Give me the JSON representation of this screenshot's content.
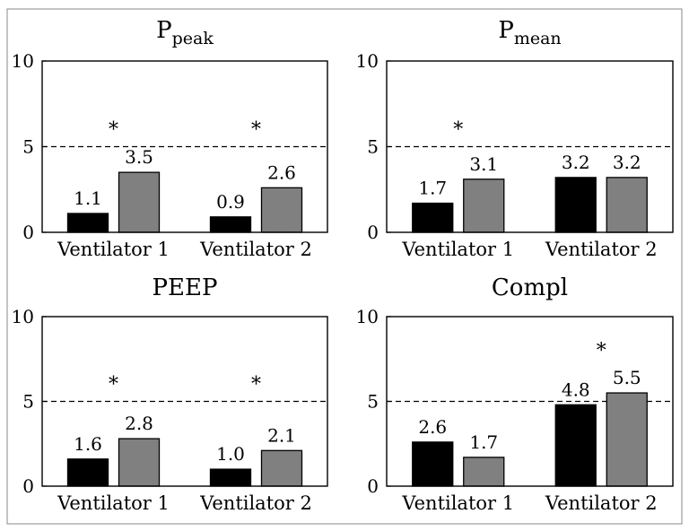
{
  "chart_data": [
    {
      "type": "bar",
      "title": "P",
      "title_subscript": "peak",
      "categories": [
        "Ventilator 1",
        "Ventilator 2"
      ],
      "series": [
        {
          "color": "#000000",
          "values": [
            1.1,
            0.9
          ]
        },
        {
          "color": "#808080",
          "values": [
            3.5,
            2.6
          ]
        }
      ],
      "value_labels": [
        [
          "1.1",
          "3.5"
        ],
        [
          "0.9",
          "2.6"
        ]
      ],
      "significance_markers": [
        "*",
        "*"
      ],
      "reference_line": 5,
      "ylim": [
        0,
        10
      ],
      "yticks": [
        "0",
        "5",
        "10"
      ],
      "grid": false
    },
    {
      "type": "bar",
      "title": "P",
      "title_subscript": "mean",
      "categories": [
        "Ventilator 1",
        "Ventilator 2"
      ],
      "series": [
        {
          "color": "#000000",
          "values": [
            1.7,
            3.2
          ]
        },
        {
          "color": "#808080",
          "values": [
            3.1,
            3.2
          ]
        }
      ],
      "value_labels": [
        [
          "1.7",
          "3.1"
        ],
        [
          "3.2",
          "3.2"
        ]
      ],
      "significance_markers": [
        "*",
        ""
      ],
      "reference_line": 5,
      "ylim": [
        0,
        10
      ],
      "yticks": [
        "0",
        "5",
        "10"
      ],
      "grid": false
    },
    {
      "type": "bar",
      "title": "PEEP",
      "title_subscript": "",
      "categories": [
        "Ventilator 1",
        "Ventilator 2"
      ],
      "series": [
        {
          "color": "#000000",
          "values": [
            1.6,
            1.0
          ]
        },
        {
          "color": "#808080",
          "values": [
            2.8,
            2.1
          ]
        }
      ],
      "value_labels": [
        [
          "1.6",
          "2.8"
        ],
        [
          "1.0",
          "2.1"
        ]
      ],
      "significance_markers": [
        "*",
        "*"
      ],
      "reference_line": 5,
      "ylim": [
        0,
        10
      ],
      "yticks": [
        "0",
        "5",
        "10"
      ],
      "grid": false
    },
    {
      "type": "bar",
      "title": "Compl",
      "title_subscript": "",
      "categories": [
        "Ventilator 1",
        "Ventilator 2"
      ],
      "series": [
        {
          "color": "#000000",
          "values": [
            2.6,
            4.8
          ]
        },
        {
          "color": "#808080",
          "values": [
            1.7,
            5.5
          ]
        }
      ],
      "value_labels": [
        [
          "2.6",
          "1.7"
        ],
        [
          "4.8",
          "5.5"
        ]
      ],
      "significance_markers": [
        "",
        "*"
      ],
      "reference_line": 5,
      "ylim": [
        0,
        10
      ],
      "yticks": [
        "0",
        "5",
        "10"
      ],
      "grid": false
    }
  ]
}
